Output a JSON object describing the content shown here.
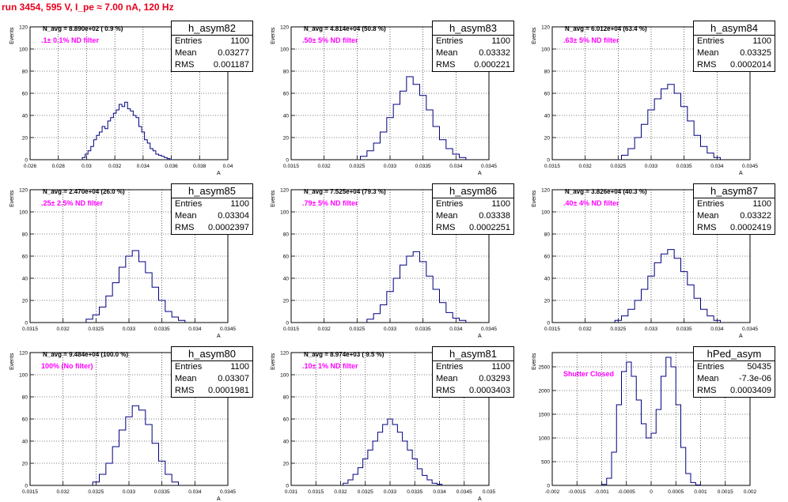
{
  "run_title": "run 3454,   595 V, I_pe ≈ 7.00 nA, 120 Hz",
  "stat_labels": {
    "entries": "Entries",
    "mean": "Mean",
    "rms": "RMS"
  },
  "colors": {
    "histogram": "#000080",
    "title": "#e8001c",
    "annotation": "#ff00ff",
    "grid": "#000000"
  },
  "chart_data": [
    {
      "type": "histogram",
      "name": "h_asym82",
      "navg": "N_avg = 8.890e+02 ( 0.9 %)",
      "filter": ".1± 0.1% ND filter",
      "entries": "1100",
      "mean": "0.03277",
      "rms": "0.001187",
      "ylabel": "Events",
      "xlabel": "A",
      "xlim": [
        0.026,
        0.04
      ],
      "ylim": [
        0,
        120
      ],
      "xticks": [
        0.026,
        0.028,
        0.03,
        0.032,
        0.034,
        0.036,
        0.038,
        0.04
      ],
      "xticklabels": [
        "0.026",
        "0.028",
        "0.03",
        "0.032",
        "0.034",
        "0.036",
        "0.038",
        "0.04"
      ],
      "yticks": [
        0,
        20,
        40,
        60,
        80,
        100,
        120
      ],
      "yticklabels": [
        "0",
        "20",
        "40",
        "60",
        "80",
        "100",
        "120"
      ],
      "x": [
        0.0298,
        0.03,
        0.0302,
        0.0304,
        0.0306,
        0.0308,
        0.031,
        0.0312,
        0.0314,
        0.0316,
        0.0318,
        0.032,
        0.0322,
        0.0324,
        0.0326,
        0.0328,
        0.033,
        0.0332,
        0.0334,
        0.0336,
        0.0338,
        0.034,
        0.0342,
        0.0344,
        0.0346,
        0.0348,
        0.035,
        0.0352,
        0.0354,
        0.0356,
        0.0358,
        0.036
      ],
      "counts": [
        2,
        5,
        8,
        12,
        18,
        22,
        25,
        30,
        28,
        35,
        38,
        42,
        45,
        50,
        48,
        52,
        46,
        44,
        40,
        38,
        30,
        25,
        18,
        15,
        10,
        8,
        5,
        4,
        3,
        2,
        1,
        0
      ]
    },
    {
      "type": "histogram",
      "name": "h_asym83",
      "navg": "N_avg = 4.814e+04 (50.8 %)",
      "filter": ".50± 5% ND filter",
      "entries": "1100",
      "mean": "0.03332",
      "rms": "0.000221",
      "ylabel": "Events",
      "xlabel": "A",
      "xlim": [
        0.0315,
        0.0345
      ],
      "ylim": [
        0,
        120
      ],
      "xticks": [
        0.0315,
        0.032,
        0.0325,
        0.033,
        0.0335,
        0.034,
        0.0345
      ],
      "xticklabels": [
        "0.0315",
        "0.032",
        "0.0325",
        "0.033",
        "0.0335",
        "0.034",
        "0.0345"
      ],
      "yticks": [
        0,
        20,
        40,
        60,
        80,
        100,
        120
      ],
      "yticklabels": [
        "0",
        "20",
        "40",
        "60",
        "80",
        "100",
        "120"
      ],
      "x": [
        0.0326,
        0.0327,
        0.0328,
        0.0329,
        0.033,
        0.0331,
        0.0332,
        0.0333,
        0.0334,
        0.0335,
        0.0336,
        0.0337,
        0.0338,
        0.0339,
        0.034,
        0.0341
      ],
      "counts": [
        3,
        8,
        15,
        25,
        38,
        50,
        62,
        75,
        68,
        58,
        45,
        30,
        18,
        10,
        5,
        2
      ]
    },
    {
      "type": "histogram",
      "name": "h_asym84",
      "navg": "N_avg = 6.012e+04 (63.4 %)",
      "filter": ".63± 5% ND filter",
      "entries": "1100",
      "mean": "0.03325",
      "rms": "0.0002014",
      "ylabel": "Events",
      "xlabel": "A",
      "xlim": [
        0.0315,
        0.0345
      ],
      "ylim": [
        0,
        120
      ],
      "xticks": [
        0.0315,
        0.032,
        0.0325,
        0.033,
        0.0335,
        0.034,
        0.0345
      ],
      "xticklabels": [
        "0.0315",
        "0.032",
        "0.0325",
        "0.033",
        "0.0335",
        "0.034",
        "0.0345"
      ],
      "yticks": [
        0,
        20,
        40,
        60,
        80,
        100,
        120
      ],
      "yticklabels": [
        "0",
        "20",
        "40",
        "60",
        "80",
        "100",
        "120"
      ],
      "x": [
        0.0326,
        0.0327,
        0.0328,
        0.0329,
        0.033,
        0.0331,
        0.0332,
        0.0333,
        0.0334,
        0.0335,
        0.0336,
        0.0337,
        0.0338,
        0.0339,
        0.034
      ],
      "counts": [
        4,
        10,
        20,
        32,
        45,
        55,
        64,
        68,
        60,
        48,
        35,
        22,
        12,
        6,
        2
      ]
    },
    {
      "type": "histogram",
      "name": "h_asym85",
      "navg": "N_avg = 2.470e+04 (26.0 %)",
      "filter": ".25± 2.5% ND filter",
      "entries": "1100",
      "mean": "0.03304",
      "rms": "0.0002397",
      "ylabel": "Events",
      "xlabel": "A",
      "xlim": [
        0.0315,
        0.0345
      ],
      "ylim": [
        0,
        120
      ],
      "xticks": [
        0.0315,
        0.032,
        0.0325,
        0.033,
        0.0335,
        0.034,
        0.0345
      ],
      "xticklabels": [
        "0.0315",
        "0.032",
        "0.0325",
        "0.033",
        "0.0335",
        "0.034",
        "0.0345"
      ],
      "yticks": [
        0,
        20,
        40,
        60,
        80,
        100,
        120
      ],
      "yticklabels": [
        "0",
        "20",
        "40",
        "60",
        "80",
        "100",
        "120"
      ],
      "x": [
        0.0324,
        0.0325,
        0.0326,
        0.0327,
        0.0328,
        0.0329,
        0.033,
        0.0331,
        0.0332,
        0.0333,
        0.0334,
        0.0335,
        0.0336,
        0.0337,
        0.0338
      ],
      "counts": [
        3,
        7,
        14,
        24,
        36,
        50,
        60,
        65,
        55,
        45,
        32,
        20,
        10,
        5,
        2
      ]
    },
    {
      "type": "histogram",
      "name": "h_asym86",
      "navg": "N_avg = 7.525e+04 (79.3 %)",
      "filter": ".79± 5% ND filter",
      "entries": "1100",
      "mean": "0.03338",
      "rms": "0.0002251",
      "ylabel": "Events",
      "xlabel": "A",
      "xlim": [
        0.0315,
        0.0345
      ],
      "ylim": [
        0,
        120
      ],
      "xticks": [
        0.0315,
        0.032,
        0.0325,
        0.033,
        0.0335,
        0.034,
        0.0345
      ],
      "xticklabels": [
        "0.0315",
        "0.032",
        "0.0325",
        "0.033",
        "0.0335",
        "0.034",
        "0.0345"
      ],
      "yticks": [
        0,
        20,
        40,
        60,
        80,
        100,
        120
      ],
      "yticklabels": [
        "0",
        "20",
        "40",
        "60",
        "80",
        "100",
        "120"
      ],
      "x": [
        0.0327,
        0.0328,
        0.0329,
        0.033,
        0.0331,
        0.0332,
        0.0333,
        0.0334,
        0.0335,
        0.0336,
        0.0337,
        0.0338,
        0.0339,
        0.034,
        0.0341
      ],
      "counts": [
        3,
        8,
        16,
        28,
        40,
        52,
        60,
        64,
        55,
        42,
        30,
        18,
        9,
        4,
        2
      ]
    },
    {
      "type": "histogram",
      "name": "h_asym87",
      "navg": "N_avg = 3.826e+04 (40.3 %)",
      "filter": ".40± 4% ND filter",
      "entries": "1100",
      "mean": "0.03322",
      "rms": "0.0002419",
      "ylabel": "Events",
      "xlabel": "A",
      "xlim": [
        0.0315,
        0.0345
      ],
      "ylim": [
        0,
        120
      ],
      "xticks": [
        0.0315,
        0.032,
        0.0325,
        0.033,
        0.0335,
        0.034,
        0.0345
      ],
      "xticklabels": [
        "0.0315",
        "0.032",
        "0.0325",
        "0.033",
        "0.0335",
        "0.034",
        "0.0345"
      ],
      "yticks": [
        0,
        20,
        40,
        60,
        80,
        100,
        120
      ],
      "yticklabels": [
        "0",
        "20",
        "40",
        "60",
        "80",
        "100",
        "120"
      ],
      "x": [
        0.0325,
        0.0326,
        0.0327,
        0.0328,
        0.0329,
        0.033,
        0.0331,
        0.0332,
        0.0333,
        0.0334,
        0.0335,
        0.0336,
        0.0337,
        0.0338,
        0.0339,
        0.034
      ],
      "counts": [
        2,
        6,
        12,
        20,
        30,
        42,
        54,
        62,
        66,
        58,
        46,
        34,
        22,
        12,
        6,
        2
      ]
    },
    {
      "type": "histogram",
      "name": "h_asym80",
      "navg": "N_avg = 9.484e+04 (100.0 %)",
      "filter": "100% (No filter)",
      "entries": "1100",
      "mean": "0.03307",
      "rms": "0.0001981",
      "ylabel": "Events",
      "xlabel": "A",
      "xlim": [
        0.0315,
        0.0345
      ],
      "ylim": [
        0,
        120
      ],
      "xticks": [
        0.0315,
        0.032,
        0.0325,
        0.033,
        0.0335,
        0.034,
        0.0345
      ],
      "xticklabels": [
        "0.0315",
        "0.032",
        "0.0325",
        "0.033",
        "0.0335",
        "0.034",
        "0.0345"
      ],
      "yticks": [
        0,
        20,
        40,
        60,
        80,
        100,
        120
      ],
      "yticklabels": [
        "0",
        "20",
        "40",
        "60",
        "80",
        "100",
        "120"
      ],
      "x": [
        0.0325,
        0.0326,
        0.0327,
        0.0328,
        0.0329,
        0.033,
        0.0331,
        0.0332,
        0.0333,
        0.0334,
        0.0335,
        0.0336,
        0.0337
      ],
      "counts": [
        3,
        10,
        20,
        35,
        50,
        62,
        72,
        68,
        55,
        38,
        22,
        10,
        3
      ]
    },
    {
      "type": "histogram",
      "name": "h_asym81",
      "navg": "N_avg = 8.974e+03 ( 9.5 %)",
      "filter": ".10± 1% ND filter",
      "entries": "1100",
      "mean": "0.03293",
      "rms": "0.0003403",
      "ylabel": "Events",
      "xlabel": "A",
      "xlim": [
        0.031,
        0.035
      ],
      "ylim": [
        0,
        120
      ],
      "xticks": [
        0.031,
        0.0315,
        0.032,
        0.0325,
        0.033,
        0.0335,
        0.034,
        0.0345,
        0.035
      ],
      "xticklabels": [
        "0.031",
        "0.0315",
        "0.032",
        "0.0325",
        "0.033",
        "0.0335",
        "0.034",
        "0.0345",
        "0.035"
      ],
      "yticks": [
        0,
        20,
        40,
        60,
        80,
        100,
        120
      ],
      "yticklabels": [
        "0",
        "20",
        "40",
        "60",
        "80",
        "100",
        "120"
      ],
      "x": [
        0.0321,
        0.0322,
        0.0323,
        0.0324,
        0.0325,
        0.0326,
        0.0327,
        0.0328,
        0.0329,
        0.033,
        0.0331,
        0.0332,
        0.0333,
        0.0334,
        0.0335,
        0.0336,
        0.0337,
        0.0338,
        0.0339,
        0.034
      ],
      "counts": [
        2,
        5,
        10,
        16,
        24,
        32,
        40,
        48,
        55,
        60,
        55,
        48,
        40,
        32,
        24,
        15,
        9,
        5,
        2,
        1
      ]
    },
    {
      "type": "histogram",
      "name": "hPed_asym",
      "navg": "",
      "filter": "Shutter Closed",
      "entries": "50435",
      "mean": "-7.3e-06",
      "rms": "0.0003409",
      "ylabel": "Events",
      "xlabel": "",
      "xlim": [
        -0.002,
        0.002
      ],
      "ylim": [
        0,
        2800
      ],
      "xticks": [
        -0.002,
        -0.0015,
        -0.001,
        -0.0005,
        0,
        0.0005,
        0.001,
        0.0015,
        0.002
      ],
      "xticklabels": [
        "-0.002",
        "-0.0015",
        "-0.001",
        "-0.0005",
        "0",
        "0.0005",
        "0.001",
        "0.0015",
        "0.002"
      ],
      "yticks": [
        0,
        500,
        1000,
        1500,
        2000,
        2500
      ],
      "yticklabels": [
        "0",
        "500",
        "1000",
        "1500",
        "2000",
        "2500"
      ],
      "x": [
        -0.00095,
        -0.00085,
        -0.00075,
        -0.00065,
        -0.00055,
        -0.00045,
        -0.00035,
        -0.00025,
        -0.00015,
        -5e-05,
        5e-05,
        0.00015,
        0.00025,
        0.00035,
        0.00045,
        0.00055,
        0.00065,
        0.00075,
        0.00085,
        0.00095
      ],
      "counts": [
        20,
        150,
        700,
        1700,
        2400,
        2600,
        2300,
        1800,
        1300,
        1000,
        1100,
        1600,
        2300,
        2700,
        2500,
        1700,
        800,
        250,
        60,
        10
      ]
    }
  ]
}
